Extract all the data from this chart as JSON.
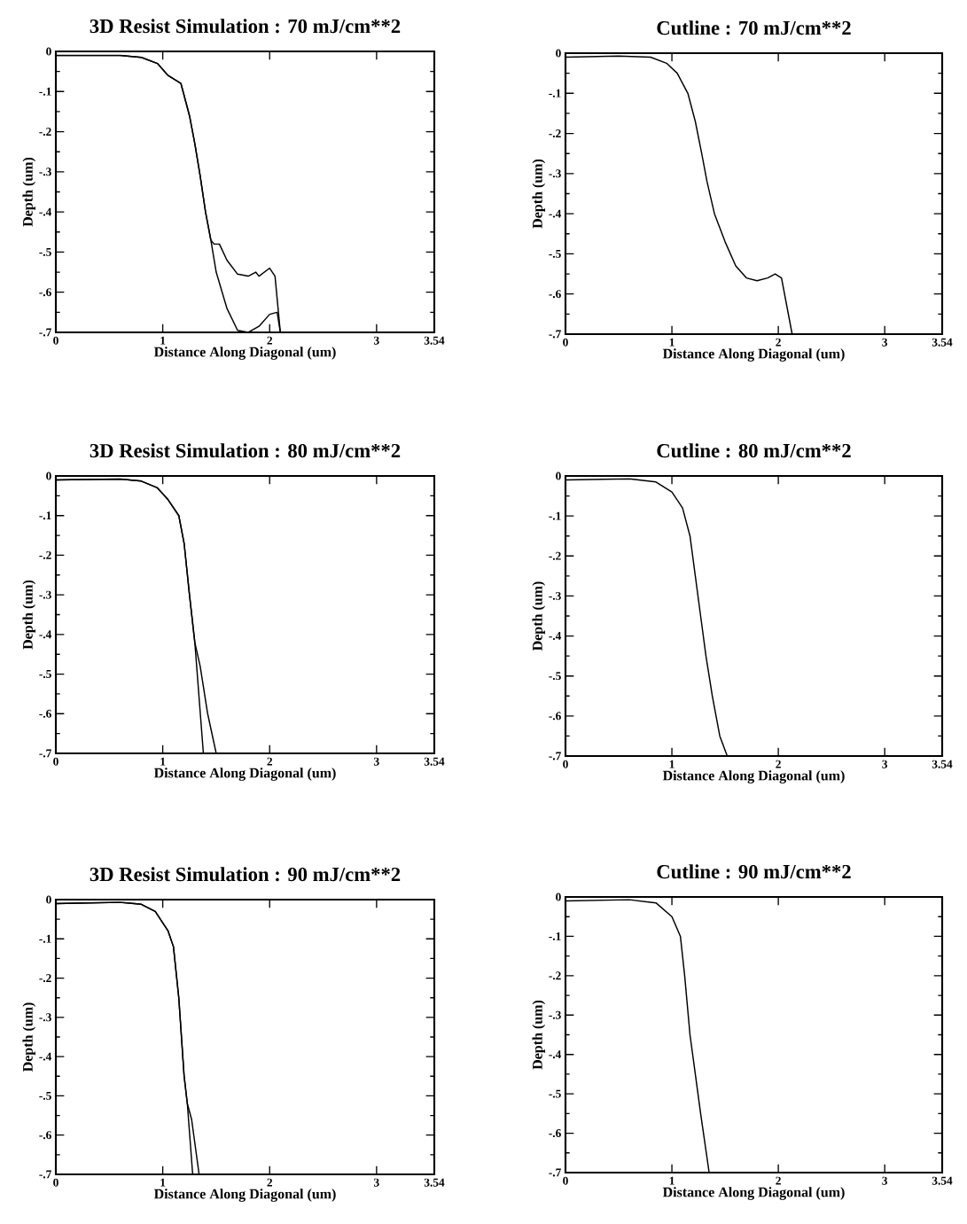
{
  "chart_data": [
    {
      "type": "line",
      "title": "3D Resist Simulation : 70 mJ/cm**2",
      "xlabel": "Distance Along Diagonal (um)",
      "ylabel": "Depth (um)",
      "xlim": [
        0,
        3.54
      ],
      "ylim": [
        -0.7,
        0
      ],
      "xticks": [
        0,
        1,
        2,
        3,
        3.54
      ],
      "yticks": [
        {
          "value": -0.7,
          "label": "-.7"
        },
        {
          "value": -0.6,
          "label": "-.6"
        },
        {
          "value": -0.5,
          "label": "-.5"
        },
        {
          "value": -0.4,
          "label": "-.4"
        },
        {
          "value": -0.3,
          "label": "-.3"
        },
        {
          "value": -0.2,
          "label": "-.2"
        },
        {
          "value": -0.1,
          "label": "-.1"
        },
        0
      ],
      "marker": "none",
      "line_style": "solid",
      "series": [
        {
          "color": "#000000",
          "x": [
            0,
            0.6,
            0.8,
            0.95,
            1.05,
            1.17,
            1.25,
            1.3,
            1.35,
            1.4,
            1.45,
            1.48,
            1.53,
            1.6,
            1.7,
            1.8,
            1.87,
            1.9,
            2.0,
            2.05,
            2.1
          ],
          "values": [
            -0.01,
            -0.01,
            -0.015,
            -0.03,
            -0.06,
            -0.08,
            -0.16,
            -0.23,
            -0.31,
            -0.4,
            -0.47,
            -0.48,
            -0.48,
            -0.52,
            -0.555,
            -0.56,
            -0.55,
            -0.56,
            -0.54,
            -0.56,
            -0.7
          ]
        },
        {
          "color": "#000000",
          "x": [
            0,
            0.6,
            0.8,
            0.95,
            1.05,
            1.17,
            1.25,
            1.3,
            1.35,
            1.4,
            1.45,
            1.5,
            1.6,
            1.7,
            1.8,
            1.9,
            2.0,
            2.07,
            2.1
          ],
          "values": [
            -0.01,
            -0.01,
            -0.015,
            -0.03,
            -0.06,
            -0.08,
            -0.16,
            -0.23,
            -0.31,
            -0.4,
            -0.47,
            -0.55,
            -0.64,
            -0.695,
            -0.7,
            -0.685,
            -0.655,
            -0.65,
            -0.7
          ]
        }
      ]
    },
    {
      "type": "line",
      "title": "Cutline : 70 mJ/cm**2",
      "xlabel": "Distance Along Diagonal (um)",
      "ylabel": "Depth (um)",
      "xlim": [
        0,
        3.54
      ],
      "ylim": [
        -0.7,
        0
      ],
      "xticks": [
        0,
        1,
        2,
        3,
        3.54
      ],
      "yticks": [
        {
          "value": -0.7,
          "label": "-.7"
        },
        {
          "value": -0.6,
          "label": "-.6"
        },
        {
          "value": -0.5,
          "label": "-.5"
        },
        {
          "value": -0.4,
          "label": "-.4"
        },
        {
          "value": -0.3,
          "label": "-.3"
        },
        {
          "value": -0.2,
          "label": "-.2"
        },
        {
          "value": -0.1,
          "label": "-.1"
        },
        0
      ],
      "marker": "none",
      "line_style": "solid",
      "series": [
        {
          "color": "#000000",
          "x": [
            0,
            0.5,
            0.8,
            0.95,
            1.05,
            1.15,
            1.22,
            1.28,
            1.33,
            1.4,
            1.5,
            1.6,
            1.7,
            1.8,
            1.9,
            1.97,
            2.03,
            2.13
          ],
          "values": [
            -0.01,
            -0.007,
            -0.01,
            -0.025,
            -0.05,
            -0.1,
            -0.17,
            -0.25,
            -0.32,
            -0.4,
            -0.47,
            -0.53,
            -0.56,
            -0.567,
            -0.56,
            -0.55,
            -0.56,
            -0.7
          ]
        }
      ]
    },
    {
      "type": "line",
      "title": "3D Resist Simulation : 80 mJ/cm**2",
      "xlabel": "Distance Along Diagonal (um)",
      "ylabel": "Depth (um)",
      "xlim": [
        0,
        3.54
      ],
      "ylim": [
        -0.7,
        0
      ],
      "xticks": [
        0,
        1,
        2,
        3,
        3.54
      ],
      "yticks": [
        {
          "value": -0.7,
          "label": "-.7"
        },
        {
          "value": -0.6,
          "label": "-.6"
        },
        {
          "value": -0.5,
          "label": "-.5"
        },
        {
          "value": -0.4,
          "label": "-.4"
        },
        {
          "value": -0.3,
          "label": "-.3"
        },
        {
          "value": -0.2,
          "label": "-.2"
        },
        {
          "value": -0.1,
          "label": "-.1"
        },
        0
      ],
      "marker": "none",
      "line_style": "solid",
      "series": [
        {
          "color": "#000000",
          "x": [
            0,
            0.6,
            0.8,
            0.95,
            1.05,
            1.15,
            1.2,
            1.25,
            1.3,
            1.38
          ],
          "values": [
            -0.01,
            -0.008,
            -0.013,
            -0.03,
            -0.06,
            -0.1,
            -0.17,
            -0.3,
            -0.42,
            -0.7
          ]
        },
        {
          "color": "#000000",
          "x": [
            0,
            0.6,
            0.8,
            0.95,
            1.05,
            1.15,
            1.2,
            1.25,
            1.3,
            1.35,
            1.42,
            1.5
          ],
          "values": [
            -0.01,
            -0.008,
            -0.013,
            -0.03,
            -0.06,
            -0.1,
            -0.17,
            -0.3,
            -0.42,
            -0.48,
            -0.6,
            -0.7
          ]
        }
      ]
    },
    {
      "type": "line",
      "title": "Cutline : 80 mJ/cm**2",
      "xlabel": "Distance Along Diagonal (um)",
      "ylabel": "Depth (um)",
      "xlim": [
        0,
        3.54
      ],
      "ylim": [
        -0.7,
        0
      ],
      "xticks": [
        0,
        1,
        2,
        3,
        3.54
      ],
      "yticks": [
        {
          "value": -0.7,
          "label": "-.7"
        },
        {
          "value": -0.6,
          "label": "-.6"
        },
        {
          "value": -0.5,
          "label": "-.5"
        },
        {
          "value": -0.4,
          "label": "-.4"
        },
        {
          "value": -0.3,
          "label": "-.3"
        },
        {
          "value": -0.2,
          "label": "-.2"
        },
        {
          "value": -0.1,
          "label": "-.1"
        },
        0
      ],
      "marker": "none",
      "line_style": "solid",
      "series": [
        {
          "color": "#000000",
          "x": [
            0,
            0.6,
            0.85,
            1.0,
            1.1,
            1.17,
            1.22,
            1.27,
            1.32,
            1.38,
            1.45,
            1.52
          ],
          "values": [
            -0.01,
            -0.007,
            -0.015,
            -0.04,
            -0.08,
            -0.15,
            -0.25,
            -0.35,
            -0.45,
            -0.55,
            -0.65,
            -0.7
          ]
        }
      ]
    },
    {
      "type": "line",
      "title": "3D Resist Simulation : 90 mJ/cm**2",
      "xlabel": "Distance Along Diagonal (um)",
      "ylabel": "Depth (um)",
      "xlim": [
        0,
        3.54
      ],
      "ylim": [
        -0.7,
        0
      ],
      "xticks": [
        0,
        1,
        2,
        3,
        3.54
      ],
      "yticks": [
        {
          "value": -0.7,
          "label": "-.7"
        },
        {
          "value": -0.6,
          "label": "-.6"
        },
        {
          "value": -0.5,
          "label": "-.5"
        },
        {
          "value": -0.4,
          "label": "-.4"
        },
        {
          "value": -0.3,
          "label": "-.3"
        },
        {
          "value": -0.2,
          "label": "-.2"
        },
        {
          "value": -0.1,
          "label": "-.1"
        },
        0
      ],
      "marker": "none",
      "line_style": "solid",
      "series": [
        {
          "color": "#000000",
          "x": [
            0,
            0.6,
            0.8,
            0.93,
            1.05,
            1.1,
            1.15,
            1.2,
            1.23,
            1.28
          ],
          "values": [
            -0.01,
            -0.007,
            -0.012,
            -0.03,
            -0.08,
            -0.12,
            -0.25,
            -0.45,
            -0.52,
            -0.7
          ]
        },
        {
          "color": "#000000",
          "x": [
            0,
            0.6,
            0.8,
            0.93,
            1.05,
            1.1,
            1.15,
            1.2,
            1.23,
            1.27,
            1.34
          ],
          "values": [
            -0.01,
            -0.007,
            -0.012,
            -0.03,
            -0.08,
            -0.12,
            -0.25,
            -0.45,
            -0.52,
            -0.56,
            -0.7
          ]
        }
      ]
    },
    {
      "type": "line",
      "title": "Cutline : 90 mJ/cm**2",
      "xlabel": "Distance Along Diagonal (um)",
      "ylabel": "Depth (um)",
      "xlim": [
        0,
        3.54
      ],
      "ylim": [
        -0.7,
        0
      ],
      "xticks": [
        0,
        1,
        2,
        3,
        3.54
      ],
      "yticks": [
        {
          "value": -0.7,
          "label": "-.7"
        },
        {
          "value": -0.6,
          "label": "-.6"
        },
        {
          "value": -0.5,
          "label": "-.5"
        },
        {
          "value": -0.4,
          "label": "-.4"
        },
        {
          "value": -0.3,
          "label": "-.3"
        },
        {
          "value": -0.2,
          "label": "-.2"
        },
        {
          "value": -0.1,
          "label": "-.1"
        },
        0
      ],
      "marker": "none",
      "line_style": "solid",
      "series": [
        {
          "color": "#000000",
          "x": [
            0,
            0.6,
            0.85,
            1.0,
            1.08,
            1.12,
            1.17,
            1.22,
            1.27,
            1.35
          ],
          "values": [
            -0.01,
            -0.007,
            -0.015,
            -0.05,
            -0.1,
            -0.2,
            -0.35,
            -0.45,
            -0.55,
            -0.7
          ]
        }
      ]
    }
  ]
}
